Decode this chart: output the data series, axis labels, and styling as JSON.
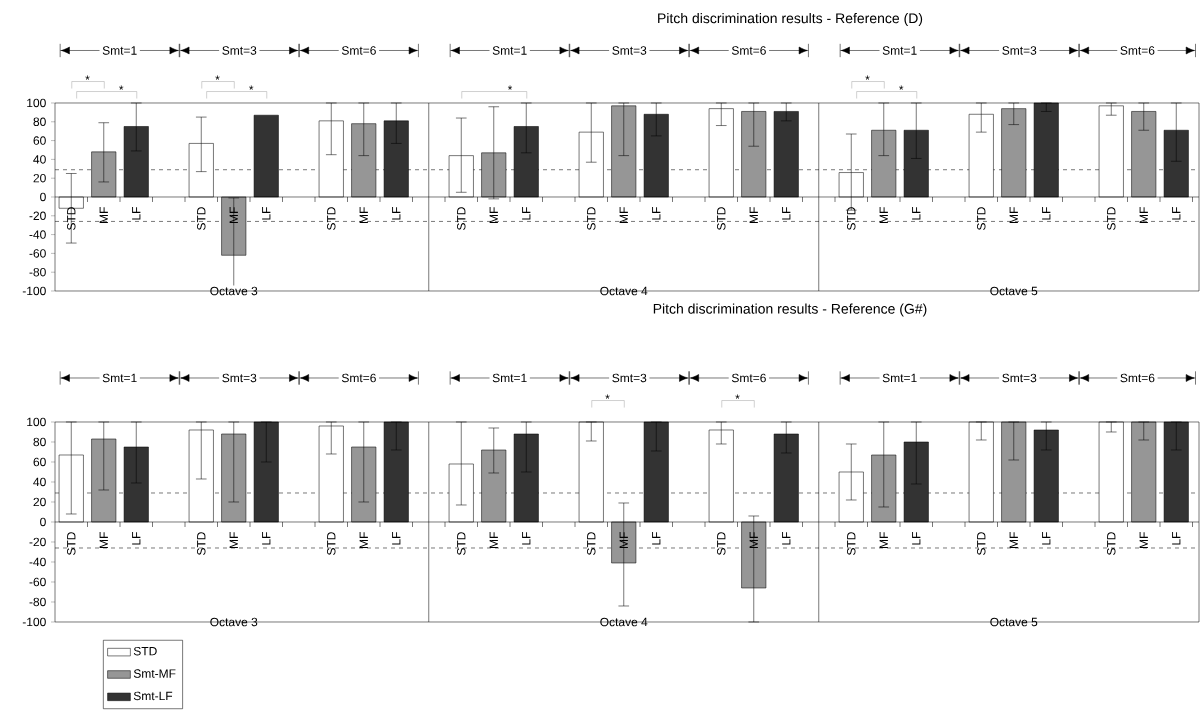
{
  "chart_data": [
    {
      "type": "bar",
      "title": "Pitch discrimination results - Reference (D)",
      "categories": [
        "STD",
        "MF",
        "LF",
        null,
        "STD",
        "MF",
        "LF",
        null,
        "STD",
        "MF",
        "LF",
        null,
        "STD",
        "MF",
        "LF",
        null,
        "STD",
        "MF",
        "LF",
        null,
        "STD",
        "MF",
        "LF",
        null,
        "STD",
        "MF",
        "LF",
        null,
        "STD",
        "MF",
        "LF",
        null,
        "STD",
        "MF",
        "LF",
        null
      ],
      "series": [
        {
          "color": "#ffffff",
          "values": [
            -12,
            null,
            null,
            null,
            57,
            null,
            null,
            null,
            81,
            null,
            null,
            null,
            44,
            null,
            null,
            null,
            69,
            null,
            null,
            null,
            94,
            null,
            null,
            null,
            26,
            null,
            null,
            null,
            88,
            null,
            null,
            null,
            97,
            null,
            null,
            null
          ],
          "errors": [
            [
              -49,
              25
            ],
            null,
            null,
            null,
            [
              27,
              85
            ],
            null,
            null,
            null,
            [
              45,
              100
            ],
            null,
            null,
            null,
            [
              5,
              84
            ],
            null,
            null,
            null,
            [
              37,
              100
            ],
            null,
            null,
            null,
            [
              76,
              100
            ],
            null,
            null,
            null,
            [
              -14,
              67
            ],
            null,
            null,
            null,
            [
              69,
              100
            ],
            null,
            null,
            null,
            [
              87,
              100
            ],
            null,
            null,
            null
          ]
        },
        {
          "color": "#969696",
          "values": [
            null,
            48,
            null,
            null,
            null,
            -62,
            null,
            null,
            null,
            78,
            null,
            null,
            null,
            47,
            null,
            null,
            null,
            97,
            null,
            null,
            null,
            91,
            null,
            null,
            null,
            71,
            null,
            null,
            null,
            94,
            null,
            null,
            null,
            91,
            null,
            null
          ],
          "errors": [
            null,
            [
              16,
              79
            ],
            null,
            null,
            null,
            [
              -100,
              -1
            ],
            null,
            null,
            null,
            [
              44,
              100
            ],
            null,
            null,
            null,
            [
              -2,
              96
            ],
            null,
            null,
            null,
            [
              44,
              100
            ],
            null,
            null,
            null,
            [
              54,
              100
            ],
            null,
            null,
            null,
            [
              44,
              100
            ],
            null,
            null,
            null,
            [
              77,
              100
            ],
            null,
            null,
            null,
            [
              71,
              100
            ],
            null,
            null
          ]
        },
        {
          "color": "#333333",
          "values": [
            null,
            null,
            75,
            null,
            null,
            null,
            87,
            null,
            null,
            null,
            81,
            null,
            null,
            null,
            75,
            null,
            null,
            null,
            88,
            null,
            null,
            null,
            91,
            null,
            null,
            null,
            71,
            null,
            null,
            null,
            100,
            null,
            null,
            null,
            71,
            null
          ],
          "errors": [
            null,
            null,
            [
              49,
              100
            ],
            null,
            null,
            null,
            null,
            null,
            null,
            null,
            [
              57,
              100
            ],
            null,
            null,
            null,
            [
              47,
              100
            ],
            null,
            null,
            null,
            [
              65,
              100
            ],
            null,
            null,
            null,
            [
              81,
              100
            ],
            null,
            null,
            null,
            [
              41,
              100
            ],
            null,
            null,
            null,
            [
              91,
              100
            ],
            null,
            null,
            null,
            [
              38,
              100
            ],
            null
          ]
        }
      ],
      "ylim": [
        -100,
        100
      ],
      "yticks": [
        100,
        80,
        60,
        40,
        20,
        0,
        -20,
        -40,
        -60,
        -80,
        -100
      ],
      "ref_lines": [
        {
          "axis": "y",
          "value": 29,
          "line_style": "dashed"
        },
        {
          "axis": "y",
          "value": -26,
          "line_style": "dashed"
        }
      ],
      "annotations": [
        "Smt=1",
        "Smt=3",
        "Smt=6",
        "Smt=1",
        "Smt=3",
        "Smt=6",
        "Smt=1",
        "Smt=3",
        "Smt=6",
        "Octave 3",
        "Octave 4",
        "Octave 5",
        "*",
        "*",
        "*",
        "*",
        "*",
        "*",
        "*"
      ]
    },
    {
      "type": "bar",
      "title": "Pitch discrimination results - Reference (G#)",
      "categories": [
        "STD",
        "MF",
        "LF",
        null,
        "STD",
        "MF",
        "LF",
        null,
        "STD",
        "MF",
        "LF",
        null,
        "STD",
        "MF",
        "LF",
        null,
        "STD",
        "MF",
        "LF",
        null,
        "STD",
        "MF",
        "LF",
        null,
        "STD",
        "MF",
        "LF",
        null,
        "STD",
        "MF",
        "LF",
        null,
        "STD",
        "MF",
        "LF",
        null
      ],
      "series": [
        {
          "name": "STD",
          "color": "#ffffff",
          "values": [
            67,
            null,
            null,
            null,
            92,
            null,
            null,
            null,
            96,
            null,
            null,
            null,
            58,
            null,
            null,
            null,
            100,
            null,
            null,
            null,
            92,
            null,
            null,
            null,
            50,
            null,
            null,
            null,
            100,
            null,
            null,
            null,
            100,
            null,
            null,
            null
          ],
          "errors": [
            [
              8,
              100
            ],
            null,
            null,
            null,
            [
              43,
              100
            ],
            null,
            null,
            null,
            [
              68,
              100
            ],
            null,
            null,
            null,
            [
              17,
              100
            ],
            null,
            null,
            null,
            [
              81,
              100
            ],
            null,
            null,
            null,
            [
              78,
              100
            ],
            null,
            null,
            null,
            [
              22,
              78
            ],
            null,
            null,
            null,
            [
              82,
              100
            ],
            null,
            null,
            null,
            [
              90,
              100
            ],
            null,
            null,
            null
          ]
        },
        {
          "name": "Smt-MF",
          "color": "#969696",
          "values": [
            null,
            83,
            null,
            null,
            null,
            88,
            null,
            null,
            null,
            75,
            null,
            null,
            null,
            72,
            null,
            null,
            null,
            -41,
            null,
            null,
            null,
            -66,
            null,
            null,
            null,
            67,
            null,
            null,
            null,
            100,
            null,
            null,
            null,
            100,
            null,
            null
          ],
          "errors": [
            null,
            [
              32,
              100
            ],
            null,
            null,
            null,
            [
              20,
              100
            ],
            null,
            null,
            null,
            [
              20,
              100
            ],
            null,
            null,
            null,
            [
              49,
              94
            ],
            null,
            null,
            null,
            [
              -84,
              19
            ],
            null,
            null,
            null,
            [
              -100,
              6
            ],
            null,
            null,
            null,
            [
              15,
              100
            ],
            null,
            null,
            null,
            [
              62,
              100
            ],
            null,
            null,
            null,
            [
              82,
              100
            ],
            null,
            null
          ]
        },
        {
          "name": "Smt-LF",
          "color": "#333333",
          "values": [
            null,
            null,
            75,
            null,
            null,
            null,
            100,
            null,
            null,
            null,
            100,
            null,
            null,
            null,
            88,
            null,
            null,
            null,
            100,
            null,
            null,
            null,
            88,
            null,
            null,
            null,
            80,
            null,
            null,
            null,
            92,
            null,
            null,
            null,
            100,
            null
          ],
          "errors": [
            null,
            null,
            [
              39,
              100
            ],
            null,
            null,
            null,
            [
              60,
              100
            ],
            null,
            null,
            null,
            [
              72,
              100
            ],
            null,
            null,
            null,
            [
              50,
              100
            ],
            null,
            null,
            null,
            [
              71,
              100
            ],
            null,
            null,
            null,
            [
              69,
              100
            ],
            null,
            null,
            null,
            [
              38,
              100
            ],
            null,
            null,
            null,
            [
              72,
              100
            ],
            null,
            null,
            null,
            [
              72,
              100
            ],
            null
          ]
        }
      ],
      "ylim": [
        -100,
        100
      ],
      "yticks": [
        100,
        80,
        60,
        40,
        20,
        0,
        -20,
        -40,
        -60,
        -80,
        -100
      ],
      "ref_lines": [
        {
          "axis": "y",
          "value": 29,
          "line_style": "dashed"
        },
        {
          "axis": "y",
          "value": -26,
          "line_style": "dashed"
        }
      ],
      "legend": "bottom left",
      "annotations": [
        "Smt=1",
        "Smt=3",
        "Smt=6",
        "Smt=1",
        "Smt=3",
        "Smt=6",
        "Smt=1",
        "Smt=3",
        "Smt=6",
        "Octave 3",
        "Octave 4",
        "Octave 5",
        "*",
        "*"
      ]
    }
  ]
}
